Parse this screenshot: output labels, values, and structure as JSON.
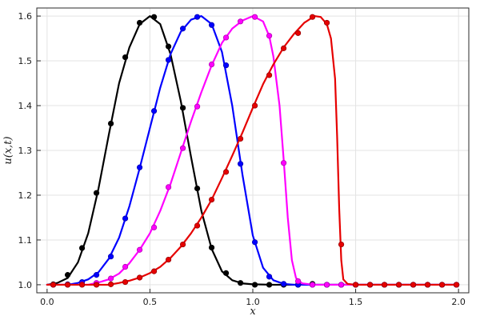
{
  "chart_data": {
    "type": "line",
    "title": "",
    "xlabel": "x",
    "ylabel": "u(x,t)",
    "xlim": [
      0,
      2
    ],
    "ylim": [
      1.0,
      1.6
    ],
    "grid": true,
    "background": "#ffffff",
    "axis_color": "#2a2a2a",
    "grid_color": "#e3e3e3",
    "xticks": {
      "values": [
        0,
        0.5,
        1,
        1.5,
        2
      ],
      "labels": [
        "0.0",
        "0.5",
        "1.0",
        "1.5",
        "2.0"
      ]
    },
    "yticks": {
      "values": [
        1.0,
        1.1,
        1.2,
        1.3,
        1.4,
        1.5,
        1.6
      ],
      "labels": [
        "1.0",
        "1.1",
        "1.2",
        "1.3",
        "1.4",
        "1.5",
        "1.6"
      ]
    },
    "legend": "none",
    "series": [
      {
        "name": "black",
        "color": "#000000",
        "marker_stroke": "#000000",
        "line": [
          [
            0,
            1
          ],
          [
            0.05,
            1.004
          ],
          [
            0.1,
            1.015
          ],
          [
            0.15,
            1.05
          ],
          [
            0.2,
            1.115
          ],
          [
            0.25,
            1.215
          ],
          [
            0.3,
            1.335
          ],
          [
            0.35,
            1.45
          ],
          [
            0.4,
            1.53
          ],
          [
            0.45,
            1.582
          ],
          [
            0.5,
            1.6
          ],
          [
            0.55,
            1.582
          ],
          [
            0.6,
            1.515
          ],
          [
            0.65,
            1.41
          ],
          [
            0.7,
            1.285
          ],
          [
            0.75,
            1.165
          ],
          [
            0.8,
            1.08
          ],
          [
            0.85,
            1.03
          ],
          [
            0.9,
            1.01
          ],
          [
            0.95,
            1.003
          ],
          [
            1,
            1.001
          ],
          [
            1.1,
            1
          ],
          [
            1.3,
            1
          ],
          [
            1.6,
            1
          ],
          [
            2,
            1
          ]
        ],
        "dots": [
          [
            0.03,
            1.001
          ],
          [
            0.1,
            1.022
          ],
          [
            0.17,
            1.082
          ],
          [
            0.24,
            1.205
          ],
          [
            0.31,
            1.36
          ],
          [
            0.38,
            1.508
          ],
          [
            0.45,
            1.585
          ],
          [
            0.52,
            1.598
          ],
          [
            0.59,
            1.532
          ],
          [
            0.66,
            1.395
          ],
          [
            0.73,
            1.215
          ],
          [
            0.8,
            1.083
          ],
          [
            0.87,
            1.026
          ],
          [
            0.94,
            1.004
          ],
          [
            1.01,
            1
          ],
          [
            1.08,
            1
          ],
          [
            1.15,
            1
          ],
          [
            1.22,
            1
          ],
          [
            1.29,
            1.002
          ],
          [
            1.36,
            1
          ],
          [
            1.43,
            1
          ],
          [
            1.5,
            1
          ],
          [
            1.57,
            1
          ],
          [
            1.64,
            1
          ],
          [
            1.71,
            1
          ],
          [
            1.78,
            1
          ],
          [
            1.85,
            1
          ],
          [
            1.92,
            1
          ],
          [
            1.99,
            1
          ]
        ]
      },
      {
        "name": "blue",
        "color": "#0000ff",
        "marker_stroke": "#0000b3",
        "line": [
          [
            0,
            1
          ],
          [
            0.1,
            1
          ],
          [
            0.15,
            1.004
          ],
          [
            0.2,
            1.012
          ],
          [
            0.25,
            1.028
          ],
          [
            0.3,
            1.058
          ],
          [
            0.35,
            1.105
          ],
          [
            0.4,
            1.175
          ],
          [
            0.45,
            1.26
          ],
          [
            0.5,
            1.35
          ],
          [
            0.55,
            1.44
          ],
          [
            0.6,
            1.515
          ],
          [
            0.65,
            1.565
          ],
          [
            0.7,
            1.592
          ],
          [
            0.75,
            1.6
          ],
          [
            0.8,
            1.582
          ],
          [
            0.85,
            1.52
          ],
          [
            0.9,
            1.4
          ],
          [
            0.95,
            1.245
          ],
          [
            1,
            1.11
          ],
          [
            1.05,
            1.038
          ],
          [
            1.1,
            1.01
          ],
          [
            1.15,
            1.002
          ],
          [
            1.2,
            1
          ],
          [
            1.5,
            1
          ],
          [
            2,
            1
          ]
        ],
        "dots": [
          [
            0.03,
            1
          ],
          [
            0.1,
            1.001
          ],
          [
            0.17,
            1.006
          ],
          [
            0.24,
            1.022
          ],
          [
            0.31,
            1.063
          ],
          [
            0.38,
            1.148
          ],
          [
            0.45,
            1.262
          ],
          [
            0.52,
            1.388
          ],
          [
            0.59,
            1.502
          ],
          [
            0.66,
            1.572
          ],
          [
            0.73,
            1.598
          ],
          [
            0.8,
            1.58
          ],
          [
            0.87,
            1.49
          ],
          [
            0.94,
            1.27
          ],
          [
            1.01,
            1.095
          ],
          [
            1.08,
            1.018
          ],
          [
            1.15,
            1.002
          ],
          [
            1.22,
            1
          ],
          [
            1.29,
            1
          ],
          [
            1.36,
            1
          ],
          [
            1.43,
            1
          ],
          [
            1.5,
            1
          ],
          [
            1.57,
            1
          ],
          [
            1.64,
            1
          ],
          [
            1.71,
            1
          ],
          [
            1.78,
            1
          ],
          [
            1.85,
            1
          ],
          [
            1.92,
            1
          ],
          [
            1.99,
            1
          ]
        ]
      },
      {
        "name": "magenta",
        "color": "#ff00ff",
        "marker_stroke": "#b300b3",
        "line": [
          [
            0,
            1
          ],
          [
            0.2,
            1
          ],
          [
            0.25,
            1.005
          ],
          [
            0.3,
            1.012
          ],
          [
            0.35,
            1.025
          ],
          [
            0.4,
            1.048
          ],
          [
            0.45,
            1.078
          ],
          [
            0.5,
            1.115
          ],
          [
            0.55,
            1.165
          ],
          [
            0.6,
            1.225
          ],
          [
            0.65,
            1.295
          ],
          [
            0.7,
            1.365
          ],
          [
            0.75,
            1.43
          ],
          [
            0.8,
            1.49
          ],
          [
            0.85,
            1.54
          ],
          [
            0.9,
            1.572
          ],
          [
            0.95,
            1.59
          ],
          [
            1,
            1.6
          ],
          [
            1.05,
            1.588
          ],
          [
            1.08,
            1.555
          ],
          [
            1.1,
            1.51
          ],
          [
            1.13,
            1.4
          ],
          [
            1.15,
            1.28
          ],
          [
            1.17,
            1.15
          ],
          [
            1.19,
            1.055
          ],
          [
            1.21,
            1.015
          ],
          [
            1.24,
            1.003
          ],
          [
            1.3,
            1
          ],
          [
            1.6,
            1
          ],
          [
            2,
            1
          ]
        ],
        "dots": [
          [
            0.03,
            1
          ],
          [
            0.1,
            1
          ],
          [
            0.17,
            1.001
          ],
          [
            0.24,
            1.004
          ],
          [
            0.31,
            1.014
          ],
          [
            0.38,
            1.04
          ],
          [
            0.45,
            1.078
          ],
          [
            0.52,
            1.128
          ],
          [
            0.59,
            1.218
          ],
          [
            0.66,
            1.305
          ],
          [
            0.73,
            1.398
          ],
          [
            0.8,
            1.492
          ],
          [
            0.87,
            1.552
          ],
          [
            0.94,
            1.588
          ],
          [
            1.01,
            1.598
          ],
          [
            1.08,
            1.556
          ],
          [
            1.15,
            1.272
          ],
          [
            1.22,
            1.008
          ],
          [
            1.29,
            1
          ],
          [
            1.36,
            1
          ],
          [
            1.43,
            1
          ],
          [
            1.5,
            1
          ],
          [
            1.57,
            1
          ],
          [
            1.64,
            1
          ],
          [
            1.71,
            1
          ],
          [
            1.78,
            1
          ],
          [
            1.85,
            1
          ],
          [
            1.92,
            1
          ],
          [
            1.99,
            1
          ]
        ]
      },
      {
        "name": "red",
        "color": "#e60000",
        "marker_stroke": "#990000",
        "line": [
          [
            0,
            1
          ],
          [
            0.3,
            1
          ],
          [
            0.35,
            1.004
          ],
          [
            0.4,
            1.009
          ],
          [
            0.45,
            1.016
          ],
          [
            0.5,
            1.026
          ],
          [
            0.55,
            1.04
          ],
          [
            0.6,
            1.06
          ],
          [
            0.65,
            1.085
          ],
          [
            0.7,
            1.115
          ],
          [
            0.75,
            1.15
          ],
          [
            0.8,
            1.19
          ],
          [
            0.85,
            1.238
          ],
          [
            0.9,
            1.288
          ],
          [
            0.95,
            1.34
          ],
          [
            1,
            1.395
          ],
          [
            1.05,
            1.448
          ],
          [
            1.1,
            1.492
          ],
          [
            1.15,
            1.53
          ],
          [
            1.2,
            1.56
          ],
          [
            1.25,
            1.585
          ],
          [
            1.3,
            1.6
          ],
          [
            1.33,
            1.598
          ],
          [
            1.36,
            1.582
          ],
          [
            1.38,
            1.55
          ],
          [
            1.4,
            1.46
          ],
          [
            1.41,
            1.33
          ],
          [
            1.42,
            1.17
          ],
          [
            1.43,
            1.055
          ],
          [
            1.44,
            1.012
          ],
          [
            1.46,
            1.002
          ],
          [
            1.5,
            1
          ],
          [
            1.75,
            1
          ],
          [
            2,
            1
          ]
        ],
        "dots": [
          [
            0.03,
            1
          ],
          [
            0.1,
            1
          ],
          [
            0.17,
            1
          ],
          [
            0.24,
            1
          ],
          [
            0.31,
            1.001
          ],
          [
            0.38,
            1.006
          ],
          [
            0.45,
            1.016
          ],
          [
            0.52,
            1.03
          ],
          [
            0.59,
            1.056
          ],
          [
            0.66,
            1.09
          ],
          [
            0.73,
            1.132
          ],
          [
            0.8,
            1.19
          ],
          [
            0.87,
            1.252
          ],
          [
            0.94,
            1.326
          ],
          [
            1.01,
            1.4
          ],
          [
            1.08,
            1.468
          ],
          [
            1.15,
            1.528
          ],
          [
            1.22,
            1.562
          ],
          [
            1.29,
            1.598
          ],
          [
            1.36,
            1.585
          ],
          [
            1.43,
            1.09
          ],
          [
            1.5,
            1
          ],
          [
            1.57,
            1
          ],
          [
            1.64,
            1
          ],
          [
            1.71,
            1
          ],
          [
            1.78,
            1
          ],
          [
            1.85,
            1
          ],
          [
            1.92,
            1
          ],
          [
            1.99,
            1
          ]
        ]
      }
    ]
  }
}
